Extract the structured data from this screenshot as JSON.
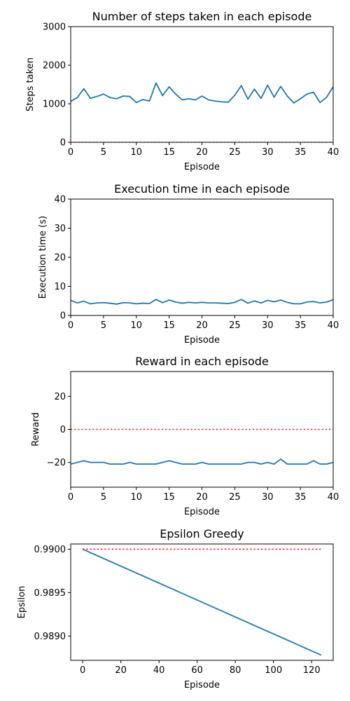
{
  "chart_data": [
    {
      "type": "line",
      "title": "Number of steps taken in each episode",
      "xlabel": "Episode",
      "ylabel": "Steps taken",
      "xlim": [
        0,
        40
      ],
      "ylim": [
        0,
        3000
      ],
      "xticks": [
        "0",
        "5",
        "10",
        "15",
        "20",
        "25",
        "30",
        "35",
        "40"
      ],
      "yticks": [
        "0",
        "1000",
        "2000",
        "3000"
      ],
      "grid": false,
      "series": [
        {
          "color": "#1f77b4",
          "style": "solid",
          "x": [
            0,
            1,
            2,
            3,
            4,
            5,
            6,
            7,
            8,
            9,
            10,
            11,
            12,
            13,
            14,
            15,
            16,
            17,
            18,
            19,
            20,
            21,
            22,
            23,
            24,
            25,
            26,
            27,
            28,
            29,
            30,
            31,
            32,
            33,
            34,
            35,
            36,
            37,
            38,
            39,
            40
          ],
          "y": [
            1060,
            1160,
            1390,
            1140,
            1190,
            1250,
            1160,
            1130,
            1200,
            1190,
            1030,
            1110,
            1070,
            1540,
            1210,
            1440,
            1250,
            1100,
            1130,
            1100,
            1200,
            1100,
            1070,
            1050,
            1040,
            1220,
            1470,
            1120,
            1380,
            1140,
            1480,
            1170,
            1450,
            1200,
            1020,
            1130,
            1250,
            1300,
            1030,
            1170,
            1440
          ]
        },
        {
          "color": "#ff0000",
          "style": "dotted",
          "x": [
            0,
            40
          ],
          "y": [
            0,
            0
          ]
        }
      ]
    },
    {
      "type": "line",
      "title": "Execution time in each episode",
      "xlabel": "Episode",
      "ylabel": "Execution time (s)",
      "xlim": [
        0,
        40
      ],
      "ylim": [
        0,
        40
      ],
      "xticks": [
        "0",
        "5",
        "10",
        "15",
        "20",
        "25",
        "30",
        "35",
        "40"
      ],
      "yticks": [
        "0",
        "10",
        "20",
        "30",
        "40"
      ],
      "grid": false,
      "series": [
        {
          "color": "#1f77b4",
          "style": "solid",
          "x": [
            0,
            1,
            2,
            3,
            4,
            5,
            6,
            7,
            8,
            9,
            10,
            11,
            12,
            13,
            14,
            15,
            16,
            17,
            18,
            19,
            20,
            21,
            22,
            23,
            24,
            25,
            26,
            27,
            28,
            29,
            30,
            31,
            32,
            33,
            34,
            35,
            36,
            37,
            38,
            39,
            40
          ],
          "y": [
            5.2,
            4.3,
            4.9,
            4.0,
            4.3,
            4.4,
            4.2,
            3.9,
            4.4,
            4.3,
            4.0,
            4.2,
            4.1,
            5.5,
            4.4,
            5.3,
            4.6,
            4.2,
            4.5,
            4.3,
            4.5,
            4.3,
            4.3,
            4.2,
            4.1,
            4.5,
            5.5,
            4.2,
            5.0,
            4.3,
            5.2,
            4.7,
            5.3,
            4.5,
            4.0,
            4.0,
            4.6,
            4.8,
            4.3,
            4.6,
            5.4
          ]
        }
      ]
    },
    {
      "type": "line",
      "title": "Reward in each episode",
      "xlabel": "Episode",
      "ylabel": "Reward",
      "xlim": [
        0,
        40
      ],
      "ylim": [
        -35,
        35
      ],
      "xticks": [
        "0",
        "5",
        "10",
        "15",
        "20",
        "25",
        "30",
        "35",
        "40"
      ],
      "yticks": [
        "−20",
        "0",
        "20"
      ],
      "ytick_values": [
        -20,
        0,
        20
      ],
      "grid": false,
      "series": [
        {
          "color": "#1f77b4",
          "style": "solid",
          "x": [
            0,
            1,
            2,
            3,
            4,
            5,
            6,
            7,
            8,
            9,
            10,
            11,
            12,
            13,
            14,
            15,
            16,
            17,
            18,
            19,
            20,
            21,
            22,
            23,
            24,
            25,
            26,
            27,
            28,
            29,
            30,
            31,
            32,
            33,
            34,
            35,
            36,
            37,
            38,
            39,
            40
          ],
          "y": [
            -21,
            -20,
            -19,
            -20,
            -20,
            -20,
            -21,
            -21,
            -21,
            -20,
            -21,
            -21,
            -21,
            -21,
            -20,
            -19,
            -20,
            -21,
            -21,
            -21,
            -20,
            -21,
            -21,
            -21,
            -21,
            -21,
            -21,
            -20,
            -20,
            -21,
            -20,
            -21,
            -18,
            -21,
            -21,
            -21,
            -21,
            -19,
            -21,
            -21,
            -20
          ]
        },
        {
          "color": "#ff0000",
          "style": "dotted",
          "x": [
            0,
            40
          ],
          "y": [
            0,
            0
          ]
        }
      ]
    },
    {
      "type": "line",
      "title": "Epsilon Greedy",
      "xlabel": "Episode",
      "ylabel": "Epsilon",
      "xlim": [
        -6.3,
        131.3
      ],
      "ylim": [
        0.98872,
        0.99006
      ],
      "xticks": [
        "0",
        "20",
        "40",
        "60",
        "80",
        "100",
        "120"
      ],
      "xtick_values": [
        0,
        20,
        40,
        60,
        80,
        100,
        120
      ],
      "yticks": [
        "0.9890",
        "0.9895",
        "0.9900"
      ],
      "ytick_values": [
        0.989,
        0.9895,
        0.99
      ],
      "grid": false,
      "series": [
        {
          "color": "#1f77b4",
          "style": "solid",
          "x": [
            0,
            125
          ],
          "y": [
            0.99,
            0.98878
          ]
        },
        {
          "color": "#ff0000",
          "style": "dotted",
          "x": [
            0,
            125
          ],
          "y": [
            0.99,
            0.99
          ]
        }
      ]
    }
  ]
}
